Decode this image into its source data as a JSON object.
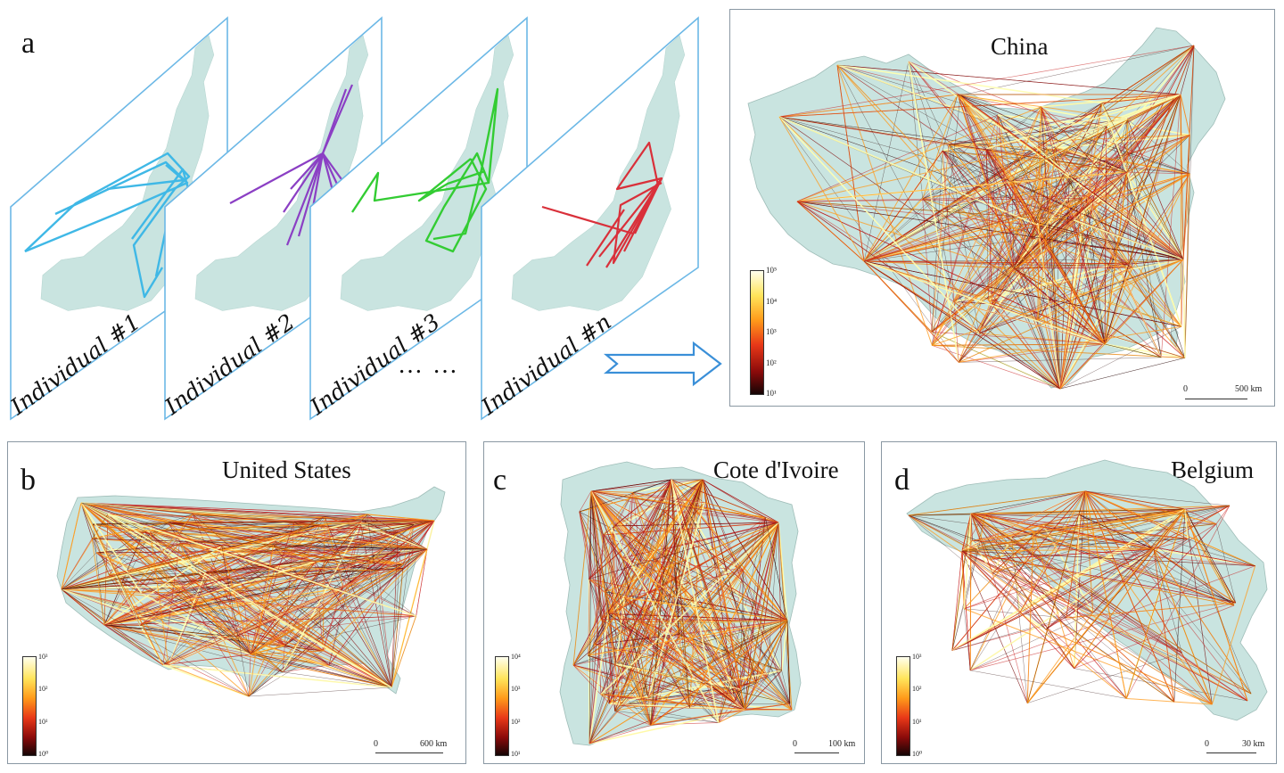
{
  "panel_a": {
    "letter": "a",
    "layers": [
      {
        "label": "Individual #1",
        "color": "#3fb8e6"
      },
      {
        "label": "Individual #2",
        "color": "#8b3fc4"
      },
      {
        "label": "Individual #3",
        "color": "#33cc33"
      },
      {
        "label": "Individual #n",
        "color": "#d9303a"
      }
    ],
    "ellipsis": "… …",
    "map_title": "China",
    "colorbar_ticks": [
      "10⁵",
      "10⁴",
      "10³",
      "10²",
      "10¹"
    ],
    "scale_zero": "0",
    "scale_label": "500 km"
  },
  "panel_b": {
    "letter": "b",
    "title": "United States",
    "colorbar_ticks": [
      "10³",
      "10²",
      "10¹",
      "10⁰"
    ],
    "scale_zero": "0",
    "scale_label": "600 km"
  },
  "panel_c": {
    "letter": "c",
    "title": "Cote d'Ivoire",
    "colorbar_ticks": [
      "10⁴",
      "10³",
      "10²",
      "10¹"
    ],
    "scale_zero": "0",
    "scale_label": "100 km"
  },
  "panel_d": {
    "letter": "d",
    "title": "Belgium",
    "colorbar_ticks": [
      "10³",
      "10²",
      "10¹",
      "10⁰"
    ],
    "scale_zero": "0",
    "scale_label": "30 km"
  },
  "colors": {
    "land": "#c9e4e0",
    "layer_border": "#6cb8e6",
    "arrow": "#3a8fd8",
    "flow_low": "#2a0a0a",
    "flow_mid": "#c81e1e",
    "flow_high": "#ff9a1a",
    "flow_top": "#ffffb0"
  }
}
